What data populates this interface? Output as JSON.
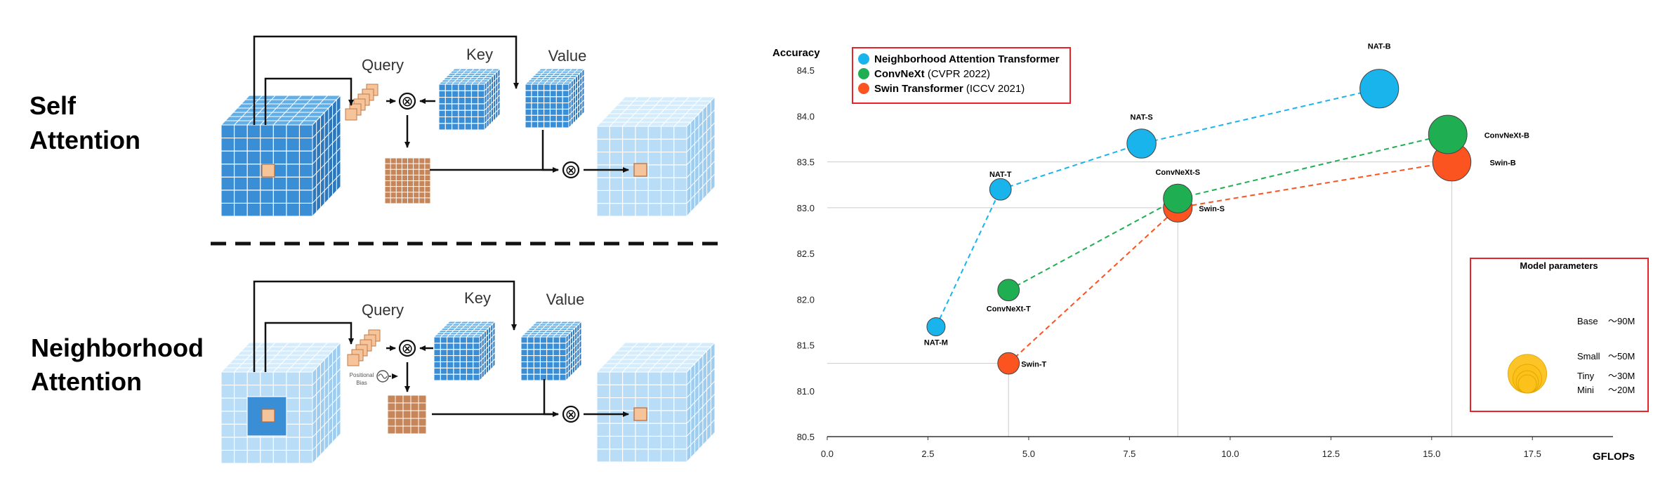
{
  "diagram": {
    "top": {
      "title_line1": "Self",
      "title_line2": "Attention",
      "query_label": "Query",
      "key_label": "Key",
      "value_label": "Value"
    },
    "bottom": {
      "title_line1": "Neighborhood",
      "title_line2": "Attention",
      "query_label": "Query",
      "key_label": "Key",
      "value_label": "Value",
      "bias_line1": "Positional",
      "bias_line2": "Bias"
    },
    "operator_symbol": "⊗",
    "colors": {
      "dark_blue": "#3a8ed6",
      "light_blue": "#b9ddf7",
      "query": "#f6c49b",
      "matrix": "#c7855a"
    }
  },
  "chart_data": {
    "type": "scatter",
    "xlabel": "GFLOPs",
    "ylabel": "Accuracy",
    "xlim": [
      0,
      19.5
    ],
    "ylim": [
      80.5,
      84.9
    ],
    "xticks": [
      "0.0",
      "2.5",
      "5.0",
      "7.5",
      "10.0",
      "12.5",
      "15.0",
      "17.5"
    ],
    "yticks": [
      "80.5",
      "81.0",
      "81.5",
      "82.0",
      "82.5",
      "83.0",
      "83.5",
      "84.0",
      "84.5"
    ],
    "legend": {
      "placement": "top-left",
      "entries": [
        {
          "bold": "Neighborhood Attention Transformer",
          "rest": "",
          "color": "#1ab4ec"
        },
        {
          "bold": "ConvNeXt",
          "rest": " (CVPR 2022)",
          "color": "#1fae52"
        },
        {
          "bold": "Swin Transformer",
          "rest": " (ICCV 2021)",
          "color": "#fb5421"
        }
      ]
    },
    "series": [
      {
        "name": "Neighborhood Attention Transformer",
        "color": "#1ab4ec",
        "points": [
          {
            "label": "NAT-M",
            "x": 2.7,
            "y": 81.7,
            "params_m": 20
          },
          {
            "label": "NAT-T",
            "x": 4.3,
            "y": 83.2,
            "params_m": 28
          },
          {
            "label": "NAT-S",
            "x": 7.8,
            "y": 83.7,
            "params_m": 51
          },
          {
            "label": "NAT-B",
            "x": 13.7,
            "y": 84.3,
            "params_m": 90
          }
        ]
      },
      {
        "name": "ConvNeXt (CVPR 2022)",
        "color": "#1fae52",
        "points": [
          {
            "label": "ConvNeXt-T",
            "x": 4.5,
            "y": 82.1,
            "params_m": 28
          },
          {
            "label": "ConvNeXt-S",
            "x": 8.7,
            "y": 83.1,
            "params_m": 50
          },
          {
            "label": "ConvNeXt-B",
            "x": 15.4,
            "y": 83.8,
            "params_m": 89
          }
        ]
      },
      {
        "name": "Swin Transformer (ICCV 2021)",
        "color": "#fb5421",
        "points": [
          {
            "label": "Swin-T",
            "x": 4.5,
            "y": 81.3,
            "params_m": 28
          },
          {
            "label": "Swin-S",
            "x": 8.7,
            "y": 83.0,
            "params_m": 50
          },
          {
            "label": "Swin-B",
            "x": 15.5,
            "y": 83.5,
            "params_m": 88
          }
        ]
      }
    ],
    "size_legend": {
      "title": "Model parameters",
      "color": "#fdc11c",
      "entries": [
        {
          "name": "Base",
          "value": "～90M",
          "params_m": 90
        },
        {
          "name": "Small",
          "value": "～50M",
          "params_m": 50
        },
        {
          "name": "Tiny",
          "value": "～30M",
          "params_m": 30
        },
        {
          "name": "Mini",
          "value": "～20M",
          "params_m": 20
        }
      ]
    }
  }
}
